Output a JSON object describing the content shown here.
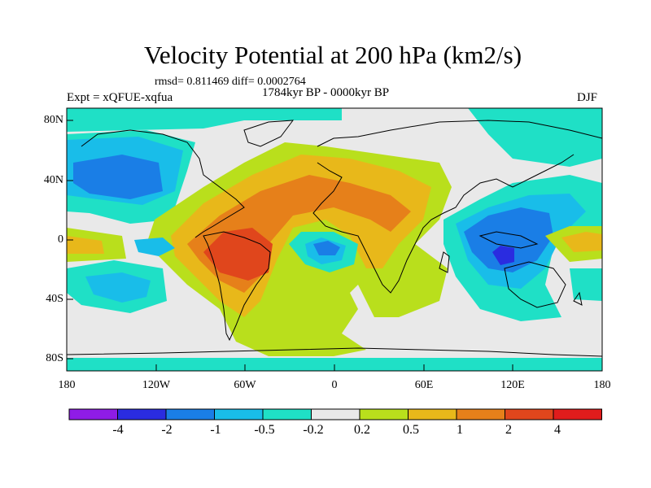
{
  "title": "Velocity Potential at 200 hPa (km2/s)",
  "stats": "rmsd= 0.811469 diff= 0.0002764",
  "subtitle": "1784kyr BP - 0000kyr BP",
  "expt": "Expt = xQFUE-xqfua",
  "season": "DJF",
  "lat_labels": [
    "80N",
    "40N",
    "0",
    "40S",
    "80S"
  ],
  "lon_labels": [
    "180",
    "120W",
    "60W",
    "0",
    "60E",
    "120E",
    "180"
  ],
  "colorbar": {
    "labels": [
      "-4",
      "-2",
      "-1",
      "-0.5",
      "-0.2",
      "0.2",
      "0.5",
      "1",
      "2",
      "4"
    ],
    "colors": [
      "#8f1ce6",
      "#2a2ce0",
      "#1a7ee6",
      "#19bde9",
      "#1fe0c6",
      "#e9e9e9",
      "#b9df1c",
      "#e8b81a",
      "#e6801a",
      "#e0461c",
      "#e01c1c"
    ]
  }
}
